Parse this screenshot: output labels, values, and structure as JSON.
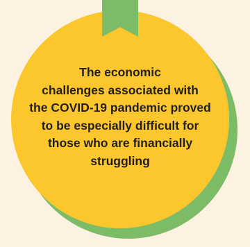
{
  "colors": {
    "background": "#fbf2e2",
    "circle": "#fcc72c",
    "circle_shadow": "#7dbc66",
    "ribbon": "#7dbc66",
    "text": "#231f20"
  },
  "ribbon_icon": "bookmark-ribbon",
  "quote": {
    "lines": [
      "The economic",
      "challenges associated with",
      "the COVID-19 pandemic proved",
      "to be especially difficult for",
      "those who are financially",
      "struggling"
    ]
  }
}
